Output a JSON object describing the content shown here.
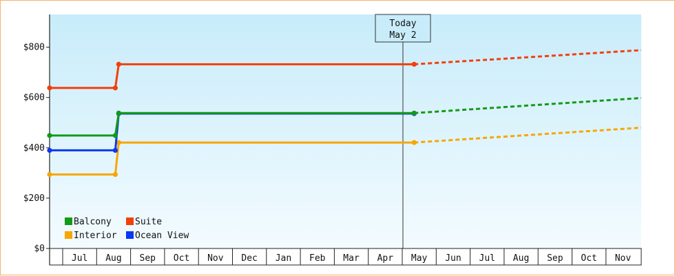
{
  "chart_data": {
    "type": "line",
    "x_months": [
      "Jul",
      "Aug",
      "Sep",
      "Oct",
      "Nov",
      "Dec",
      "Jan",
      "Feb",
      "Mar",
      "Apr",
      "May",
      "Jun",
      "Jul",
      "Aug",
      "Sep",
      "Oct",
      "Nov"
    ],
    "y_ticks": [
      "$0",
      "$200",
      "$400",
      "$600",
      "$800"
    ],
    "ylim": [
      0,
      930
    ],
    "today": {
      "line1": "Today",
      "line2": "May 2"
    },
    "series": [
      {
        "name": "Balcony",
        "color": "#139a17",
        "points": [
          [
            0,
            449
          ],
          [
            1.55,
            449
          ],
          [
            1.65,
            538
          ],
          [
            10.35,
            538
          ]
        ],
        "projection": [
          [
            10.35,
            538
          ],
          [
            17.2,
            598
          ]
        ]
      },
      {
        "name": "Suite",
        "color": "#f2400a",
        "points": [
          [
            0,
            638
          ],
          [
            1.55,
            638
          ],
          [
            1.65,
            732
          ],
          [
            10.35,
            732
          ]
        ],
        "projection": [
          [
            10.35,
            732
          ],
          [
            17.2,
            788
          ]
        ]
      },
      {
        "name": "Interior",
        "color": "#f7a600",
        "points": [
          [
            0,
            294
          ],
          [
            1.55,
            294
          ],
          [
            1.65,
            421
          ],
          [
            10.35,
            421
          ]
        ],
        "projection": [
          [
            10.35,
            421
          ],
          [
            17.2,
            480
          ]
        ]
      },
      {
        "name": "Ocean View",
        "color": "#0b38f2",
        "points": [
          [
            0,
            390
          ],
          [
            1.55,
            390
          ],
          [
            1.65,
            536
          ],
          [
            10.35,
            536
          ]
        ],
        "projection": []
      }
    ],
    "legend": [
      "Balcony",
      "Suite",
      "Interior",
      "Ocean View"
    ],
    "legend_placement": "bottom-left",
    "grid": false
  }
}
